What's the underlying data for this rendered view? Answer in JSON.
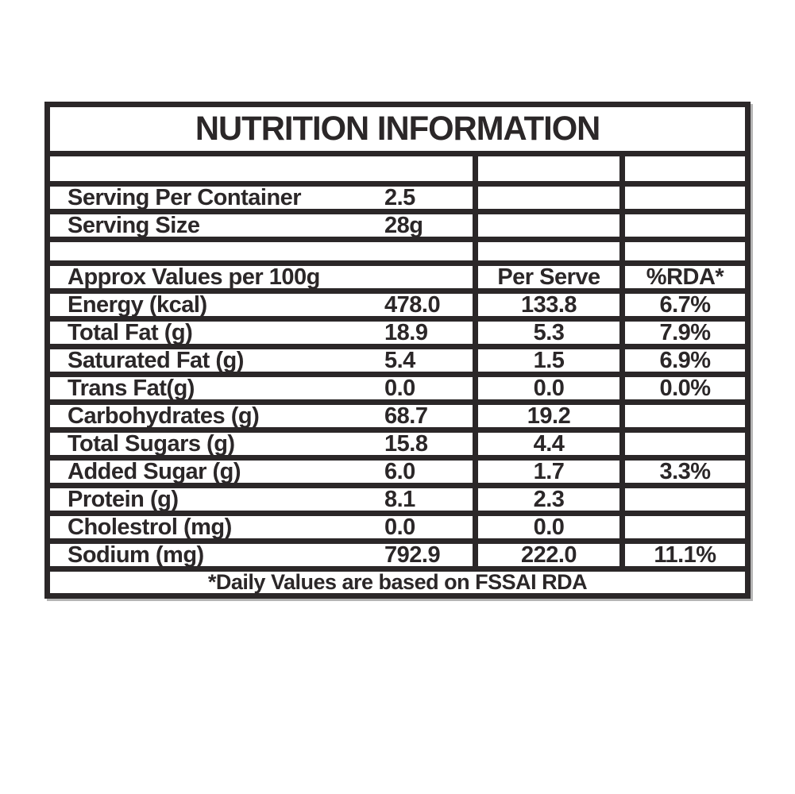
{
  "title": "NUTRITION INFORMATION",
  "serving_rows": [
    {
      "label": "Serving Per Container",
      "value": "2.5"
    },
    {
      "label": "Serving Size",
      "value": "28g"
    }
  ],
  "header": {
    "col1": "Approx Values per 100g",
    "col2": "Per Serve",
    "col3": "%RDA*"
  },
  "nutrients": [
    {
      "label": "Energy (kcal)",
      "per100g": "478.0",
      "per_serve": "133.8",
      "rda": "6.7%"
    },
    {
      "label": "Total Fat (g)",
      "per100g": "18.9",
      "per_serve": "5.3",
      "rda": "7.9%"
    },
    {
      "label": "Saturated Fat (g)",
      "per100g": "5.4",
      "per_serve": "1.5",
      "rda": "6.9%"
    },
    {
      "label": "Trans Fat(g)",
      "per100g": "0.0",
      "per_serve": "0.0",
      "rda": "0.0%"
    },
    {
      "label": "Carbohydrates (g)",
      "per100g": "68.7",
      "per_serve": "19.2",
      "rda": ""
    },
    {
      "label": "Total Sugars (g)",
      "per100g": "15.8",
      "per_serve": "4.4",
      "rda": ""
    },
    {
      "label": "Added Sugar (g)",
      "per100g": "6.0",
      "per_serve": "1.7",
      "rda": "3.3%"
    },
    {
      "label": "Protein (g)",
      "per100g": "8.1",
      "per_serve": "2.3",
      "rda": ""
    },
    {
      "label": "Cholestrol (mg)",
      "per100g": "0.0",
      "per_serve": "0.0",
      "rda": ""
    },
    {
      "label": "Sodium (mg)",
      "per100g": "792.9",
      "per_serve": "222.0",
      "rda": "11.1%"
    }
  ],
  "footnote": "*Daily Values are based on FSSAI RDA",
  "colors": {
    "ink": "#2b2728",
    "background": "#ffffff",
    "shadow": "#787878"
  }
}
